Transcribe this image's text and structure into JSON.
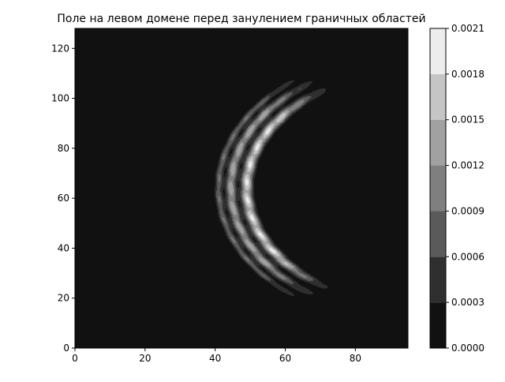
{
  "chart_data": {
    "type": "heatmap",
    "title": "Поле на левом домене перед занулением граничных областей",
    "xlabel": "",
    "ylabel": "",
    "xlim": [
      0,
      95
    ],
    "ylim": [
      0,
      128
    ],
    "x_ticks": [
      "0",
      "20",
      "40",
      "60",
      "80"
    ],
    "x_tick_values": [
      0,
      20,
      40,
      60,
      80
    ],
    "y_ticks": [
      "0",
      "20",
      "40",
      "60",
      "80",
      "100",
      "120"
    ],
    "y_tick_values": [
      0,
      20,
      40,
      60,
      80,
      100,
      120
    ],
    "grid": false,
    "colormap": "gray",
    "colorbar": {
      "levels": [
        0.0,
        0.0003,
        0.0006,
        0.0009,
        0.0012,
        0.0015,
        0.0018,
        0.0021
      ],
      "tick_labels": [
        "0.0000",
        "0.0003",
        "0.0006",
        "0.0009",
        "0.0012",
        "0.0015",
        "0.0018",
        "0.0021"
      ],
      "colors": [
        "#111111",
        "#2f2f2f",
        "#5a5a5a",
        "#7f7f7f",
        "#a1a1a1",
        "#c5c5c5",
        "#ececec"
      ]
    },
    "field": {
      "shape": "crescent arc, open to the right",
      "center": [
        95,
        64
      ],
      "theta_range_deg": [
        124,
        236
      ],
      "rings": [
        {
          "radius": 46,
          "width": 1.6,
          "peak": 0.00195
        },
        {
          "radius": 50.5,
          "width": 1.4,
          "peak": 0.0015
        },
        {
          "radius": 54,
          "width": 1.1,
          "peak": 0.00095
        }
      ]
    }
  }
}
